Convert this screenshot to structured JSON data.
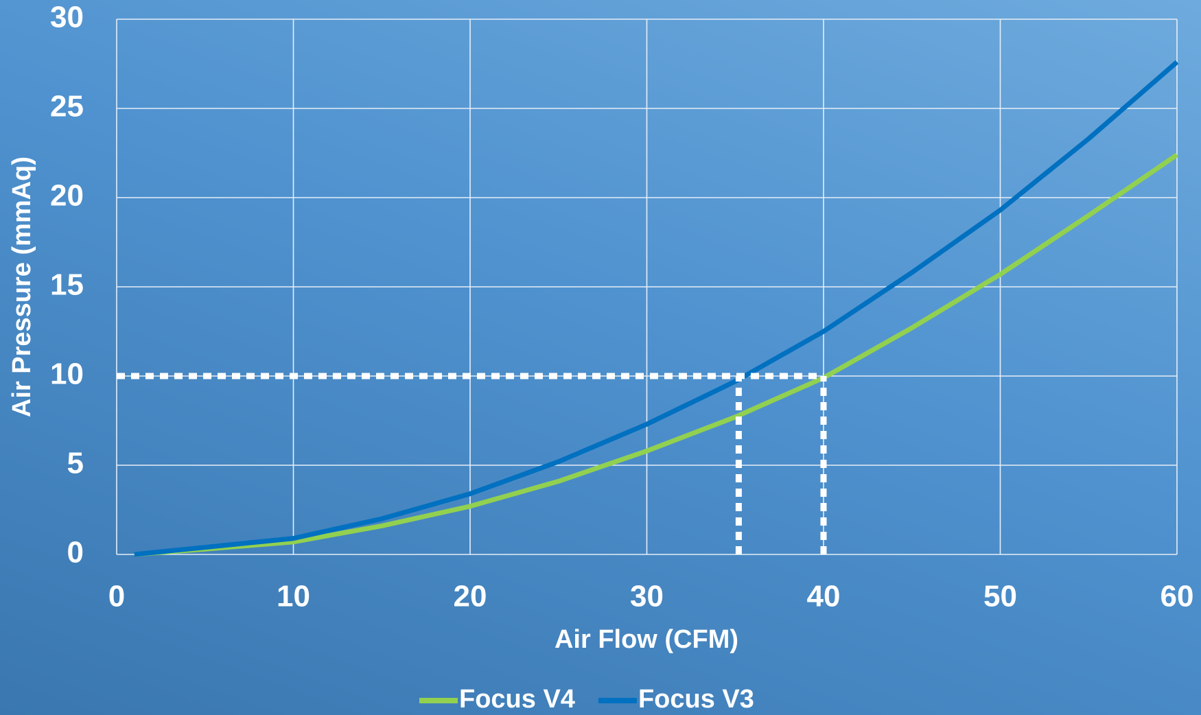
{
  "chart_data": {
    "type": "line",
    "x_label": "Air Flow (CFM)",
    "y_label": "Air Pressure (mmAq)",
    "x": [
      1,
      5,
      10,
      15,
      20,
      25,
      30,
      35,
      40,
      45,
      50,
      55,
      60
    ],
    "series": [
      {
        "name": "Focus V4",
        "color": "#92d050",
        "values": [
          0,
          0.3,
          0.7,
          1.6,
          2.7,
          4.1,
          5.8,
          7.7,
          9.9,
          12.7,
          15.7,
          19.0,
          22.4
        ]
      },
      {
        "name": "Focus V3",
        "color": "#0070c0",
        "values": [
          0,
          0.4,
          0.9,
          2.0,
          3.4,
          5.2,
          7.3,
          9.7,
          12.5,
          15.8,
          19.3,
          23.3,
          27.6
        ]
      }
    ],
    "reference_lines": [
      {
        "orientation": "horizontal",
        "value": 10,
        "start": 0,
        "end": 40
      },
      {
        "orientation": "vertical",
        "value": 35.2,
        "start": 0,
        "end": 10
      },
      {
        "orientation": "vertical",
        "value": 40,
        "start": 0,
        "end": 10
      }
    ],
    "xlim": [
      0,
      60
    ],
    "xticks": [
      0,
      10,
      20,
      30,
      40,
      50,
      60
    ],
    "ylim": [
      0,
      30
    ],
    "yticks": [
      0,
      5,
      10,
      15,
      20,
      25,
      30
    ],
    "grid": true,
    "legend": "bottom"
  }
}
